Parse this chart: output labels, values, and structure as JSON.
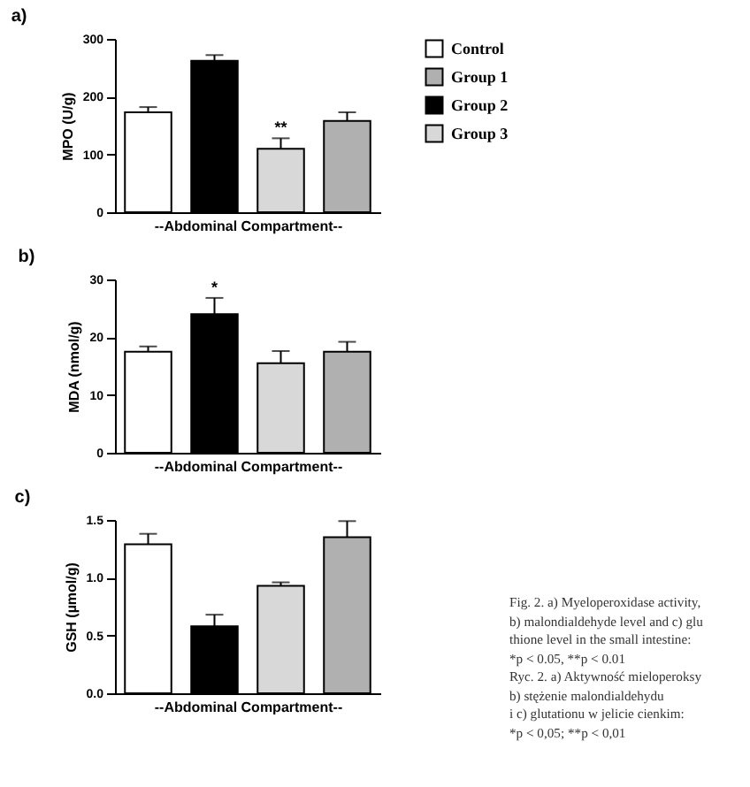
{
  "chart_data": [
    {
      "type": "bar",
      "title": "a)",
      "xlabel": "--Abdominal Compartment--",
      "ylabel": "MPO (U/g)",
      "categories": [
        null,
        null,
        null,
        null
      ],
      "ylim": [
        0,
        300
      ],
      "yticks": [
        0,
        100,
        200,
        300
      ],
      "legend": "right",
      "series": [
        {
          "name": "Control",
          "color": "#ffffff",
          "values": [
            173,
            null,
            null,
            null
          ],
          "errors": [
            [
              173,
              182
            ],
            null,
            null,
            null
          ]
        },
        {
          "name": "Group 1",
          "color": "#b0b0b0",
          "values": [
            null,
            null,
            null,
            158
          ],
          "errors": [
            null,
            null,
            null,
            [
              158,
              173
            ]
          ]
        },
        {
          "name": "Group 2",
          "color": "#000000",
          "values": [
            null,
            262,
            null,
            null
          ],
          "errors": [
            null,
            [
              262,
              272
            ],
            null,
            null
          ]
        },
        {
          "name": "Group 3",
          "color": "#d8d8d8",
          "values": [
            null,
            null,
            110,
            null
          ],
          "errors": [
            null,
            null,
            [
              110,
              128
            ],
            null
          ],
          "value_labels": [
            null,
            null,
            "**",
            null
          ]
        }
      ]
    },
    {
      "type": "bar",
      "title": "b)",
      "xlabel": "--Abdominal Compartment--",
      "ylabel": "MDA (nmol/g)",
      "categories": [
        null,
        null,
        null,
        null
      ],
      "ylim": [
        0,
        30
      ],
      "yticks": [
        0,
        10,
        20,
        30
      ],
      "legend": "right",
      "series": [
        {
          "name": "Control",
          "color": "#ffffff",
          "values": [
            17.5,
            null,
            null,
            null
          ],
          "errors": [
            [
              17.5,
              18.4
            ],
            null,
            null,
            null
          ]
        },
        {
          "name": "Group 1",
          "color": "#b0b0b0",
          "values": [
            null,
            null,
            null,
            17.5
          ],
          "errors": [
            null,
            null,
            null,
            [
              17.5,
              19.2
            ]
          ]
        },
        {
          "name": "Group 2",
          "color": "#000000",
          "values": [
            null,
            24,
            null,
            null
          ],
          "errors": [
            null,
            [
              24,
              26.8
            ],
            null,
            null
          ],
          "value_labels": [
            null,
            "*",
            null,
            null
          ]
        },
        {
          "name": "Group 3",
          "color": "#d8d8d8",
          "values": [
            null,
            null,
            15.5,
            null
          ],
          "errors": [
            null,
            null,
            [
              15.5,
              17.6
            ],
            null
          ]
        }
      ]
    },
    {
      "type": "bar",
      "title": "c)",
      "xlabel": "--Abdominal Compartment--",
      "ylabel": "GSH (µmol/g)",
      "categories": [
        null,
        null,
        null,
        null
      ],
      "ylim": [
        0,
        1.5
      ],
      "yticks": [
        {
          "value": 0,
          "label": "0.0"
        },
        {
          "value": 0.5,
          "label": "0.5"
        },
        {
          "value": 1,
          "label": "1.0"
        },
        {
          "value": 1.5,
          "label": "1.5"
        }
      ],
      "legend": "right",
      "annotations": [
        "Fig. 2. a) Myeloperoxidase activity,",
        "b) malondialdehyde level and c) glu",
        "thione level in the small intestine:",
        "*p < 0.05, **p < 0.01",
        "Ryc. 2. a) Aktywność mieloperoksy",
        "b) stężenie malondialdehydu",
        "i c) glutationu w jelicie cienkim:",
        "*p < 0,05; **p < 0,01"
      ],
      "series": [
        {
          "name": "Control",
          "color": "#ffffff",
          "values": [
            1.29,
            null,
            null,
            null
          ],
          "errors": [
            [
              1.29,
              1.38
            ],
            null,
            null,
            null
          ]
        },
        {
          "name": "Group 1",
          "color": "#b0b0b0",
          "values": [
            null,
            null,
            null,
            1.35
          ],
          "errors": [
            null,
            null,
            null,
            [
              1.35,
              1.49
            ]
          ]
        },
        {
          "name": "Group 2",
          "color": "#000000",
          "values": [
            null,
            0.58,
            null,
            null
          ],
          "errors": [
            null,
            [
              0.58,
              0.68
            ],
            null,
            null
          ]
        },
        {
          "name": "Group 3",
          "color": "#d8d8d8",
          "values": [
            null,
            null,
            0.93,
            null
          ],
          "errors": [
            null,
            null,
            [
              0.93,
              0.96
            ],
            null
          ]
        }
      ]
    }
  ]
}
